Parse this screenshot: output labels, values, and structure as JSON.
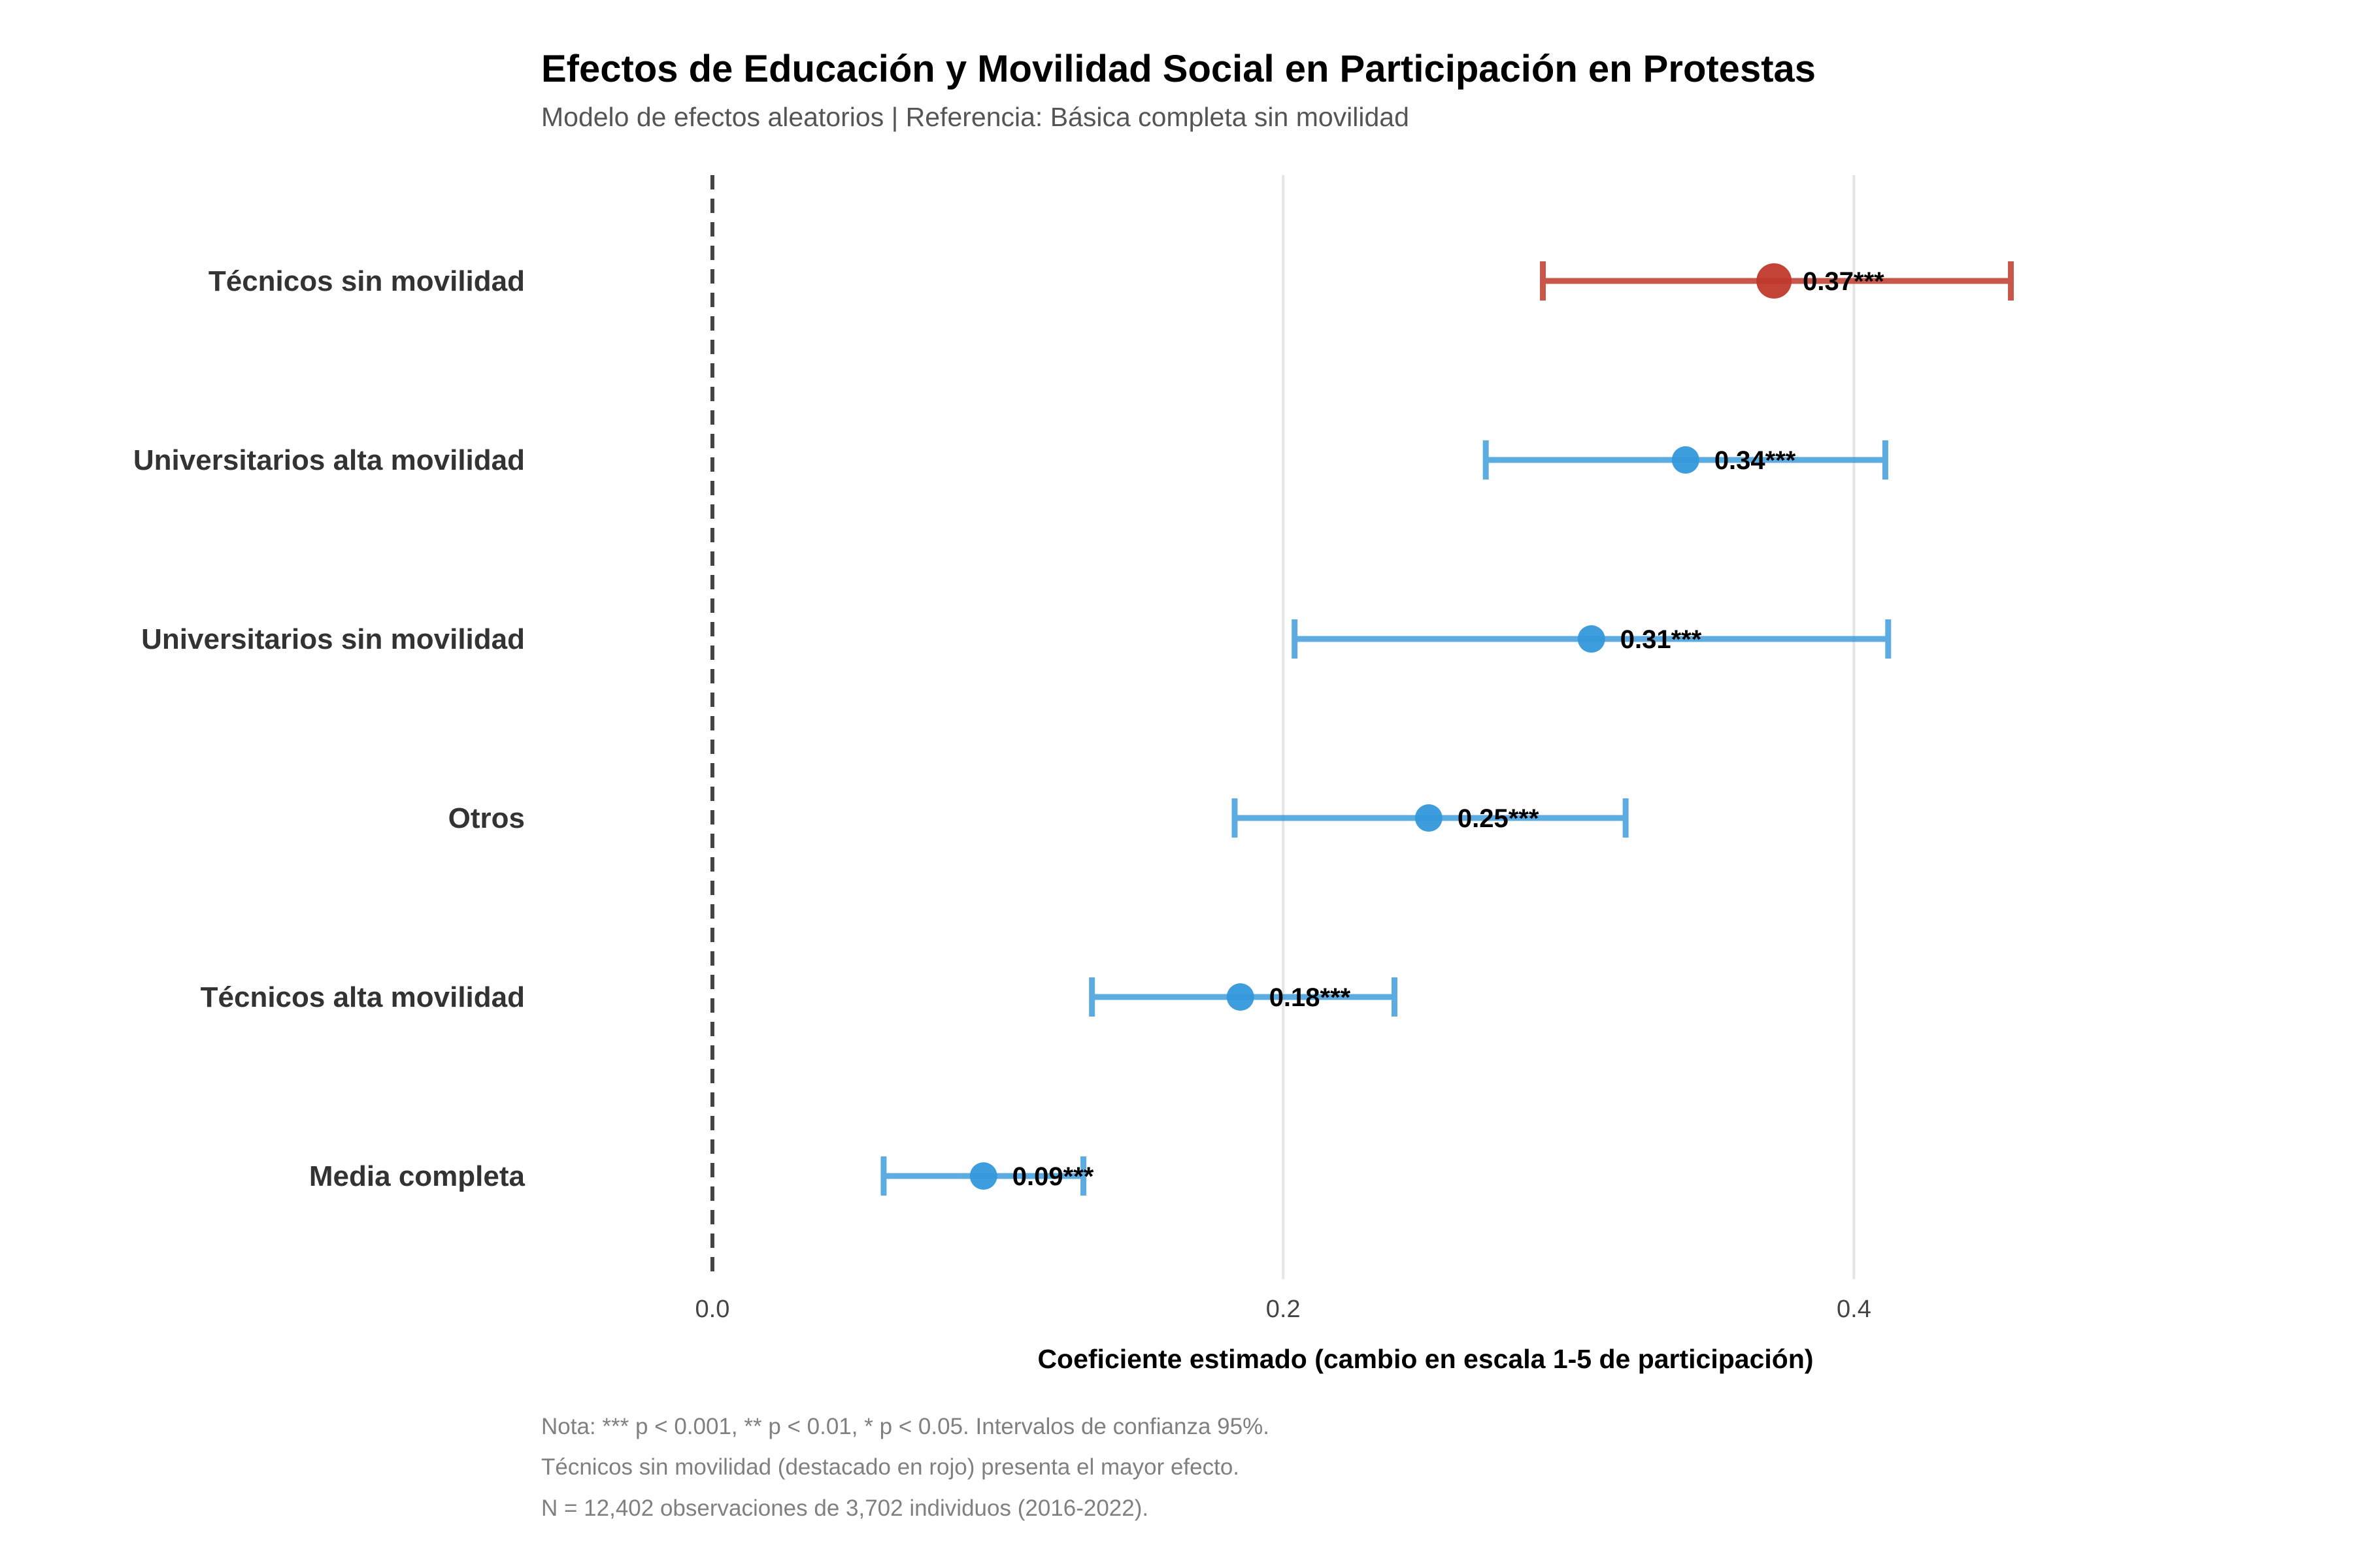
{
  "chart_data": {
    "type": "scatter",
    "subtype": "coefficient-plot",
    "title": "Efectos de Educación y Movilidad Social en Participación en Protestas",
    "subtitle": "Modelo de efectos aleatorios | Referencia: Básica completa sin movilidad",
    "xlabel": "Coeficiente estimado (cambio en escala 1-5 de participación)",
    "ylabel": "",
    "xlim": [
      -0.06,
      0.56
    ],
    "xticks": [
      0.0,
      0.2,
      0.4
    ],
    "xtick_labels": [
      "0.0",
      "0.2",
      "0.4"
    ],
    "reference_line": 0.0,
    "grid": "vertical major gridlines",
    "categories": [
      "Técnicos sin movilidad",
      "Universitarios alta movilidad",
      "Universitarios sin movilidad",
      "Otros",
      "Técnicos alta movilidad",
      "Media completa"
    ],
    "estimates": [
      0.372,
      0.341,
      0.308,
      0.251,
      0.185,
      0.095
    ],
    "ci_low": [
      0.291,
      0.271,
      0.204,
      0.183,
      0.133,
      0.06
    ],
    "ci_high": [
      0.455,
      0.411,
      0.412,
      0.32,
      0.239,
      0.13
    ],
    "value_labels": [
      "0.37***",
      "0.34***",
      "0.31***",
      "0.25***",
      "0.18***",
      "0.09***"
    ],
    "highlighted": [
      true,
      false,
      false,
      false,
      false,
      false
    ],
    "colors": {
      "highlight": "#c0392b",
      "default": "#3498db",
      "reference_line": "#444444",
      "grid": "#e5e5e5"
    }
  },
  "notes": [
    "Nota: *** p < 0.001, ** p < 0.01, * p < 0.05. Intervalos de confianza 95%.",
    "Técnicos sin movilidad (destacado en rojo) presenta el mayor efecto.",
    "N = 12,402 observaciones de 3,702 individuos (2016-2022)."
  ]
}
